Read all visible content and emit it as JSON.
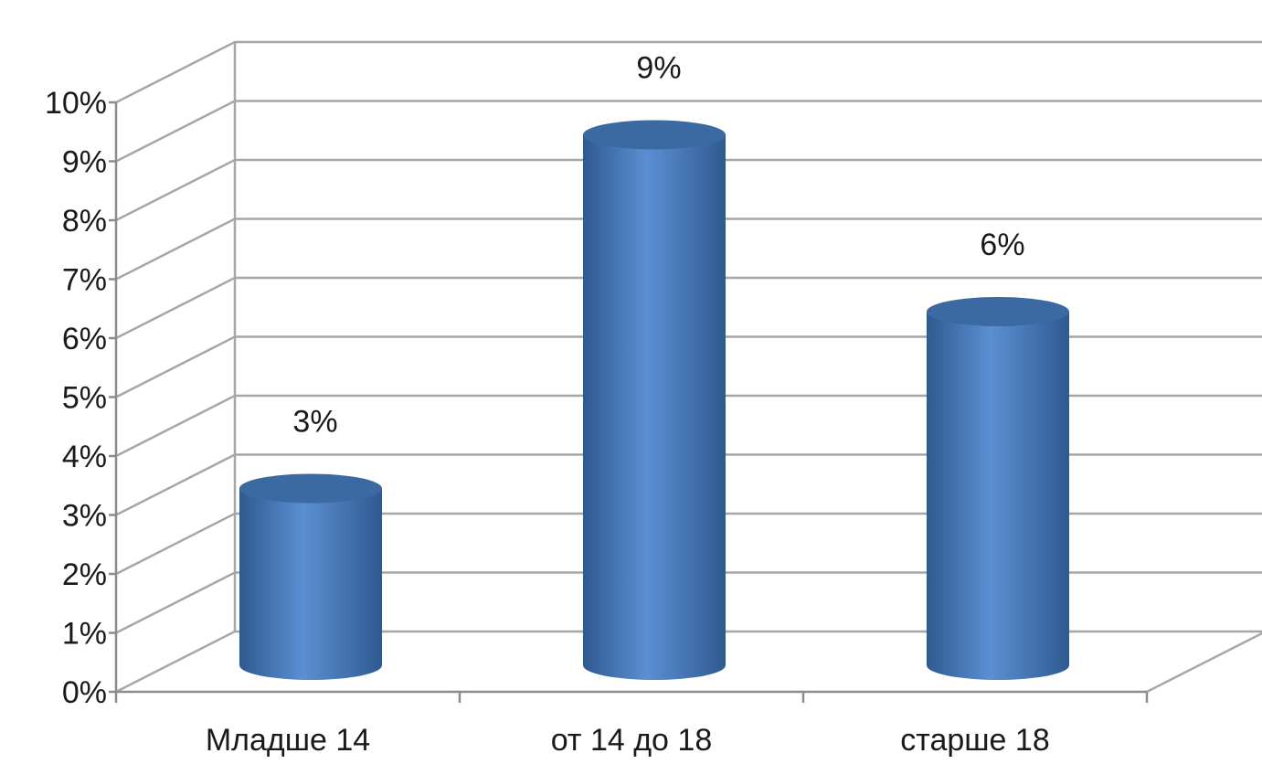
{
  "colors": {
    "bar_main": "#4a7ebf",
    "bar_light": "#5b8fd3",
    "bar_dark": "#2f5a8f",
    "bar_top": "#3b6aa3",
    "grid": "#a6a6a6",
    "axis": "#8c8c8c"
  },
  "chart_data": {
    "type": "bar",
    "categories": [
      "Младше 14",
      "от 14 до 18",
      "старше 18"
    ],
    "values": [
      3,
      9,
      6
    ],
    "data_labels": [
      "3%",
      "9%",
      "6%"
    ],
    "ylim": [
      0,
      10
    ],
    "y_ticks": [
      "0%",
      "1%",
      "2%",
      "3%",
      "4%",
      "5%",
      "6%",
      "7%",
      "8%",
      "9%",
      "10%"
    ],
    "grid": true,
    "legend": "none",
    "style": "3d-cylinder",
    "title": "",
    "xlabel": "",
    "ylabel": ""
  }
}
